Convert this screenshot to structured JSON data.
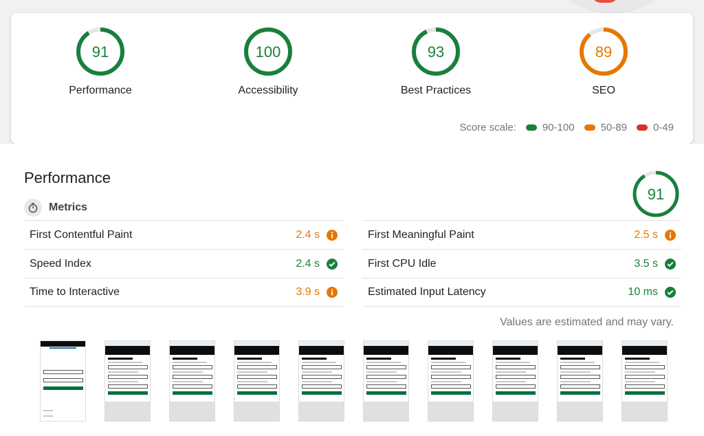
{
  "summary": {
    "gauges": [
      {
        "score": "91",
        "label": "Performance",
        "fraction": 0.91,
        "color": "#18803c"
      },
      {
        "score": "100",
        "label": "Accessibility",
        "fraction": 1.0,
        "color": "#18803c"
      },
      {
        "score": "93",
        "label": "Best Practices",
        "fraction": 0.93,
        "color": "#18803c"
      },
      {
        "score": "89",
        "label": "SEO",
        "fraction": 0.89,
        "color": "#e67700"
      }
    ],
    "scale": {
      "label": "Score scale:",
      "items": [
        {
          "range": "90-100",
          "color": "#18803c"
        },
        {
          "range": "50-89",
          "color": "#e67700"
        },
        {
          "range": "0-49",
          "color": "#d93025"
        }
      ]
    }
  },
  "performance": {
    "title": "Performance",
    "score": "91",
    "fraction": 0.91,
    "metrics_title": "Metrics",
    "metrics_left": [
      {
        "name": "First Contentful Paint",
        "value": "2.4 s",
        "status": "average"
      },
      {
        "name": "Speed Index",
        "value": "2.4 s",
        "status": "pass"
      },
      {
        "name": "Time to Interactive",
        "value": "3.9 s",
        "status": "average"
      }
    ],
    "metrics_right": [
      {
        "name": "First Meaningful Paint",
        "value": "2.5 s",
        "status": "average"
      },
      {
        "name": "First CPU Idle",
        "value": "3.5 s",
        "status": "pass"
      },
      {
        "name": "Estimated Input Latency",
        "value": "10 ms",
        "status": "pass"
      }
    ],
    "note": "Values are estimated and may vary.",
    "filmstrip_count": 10
  }
}
